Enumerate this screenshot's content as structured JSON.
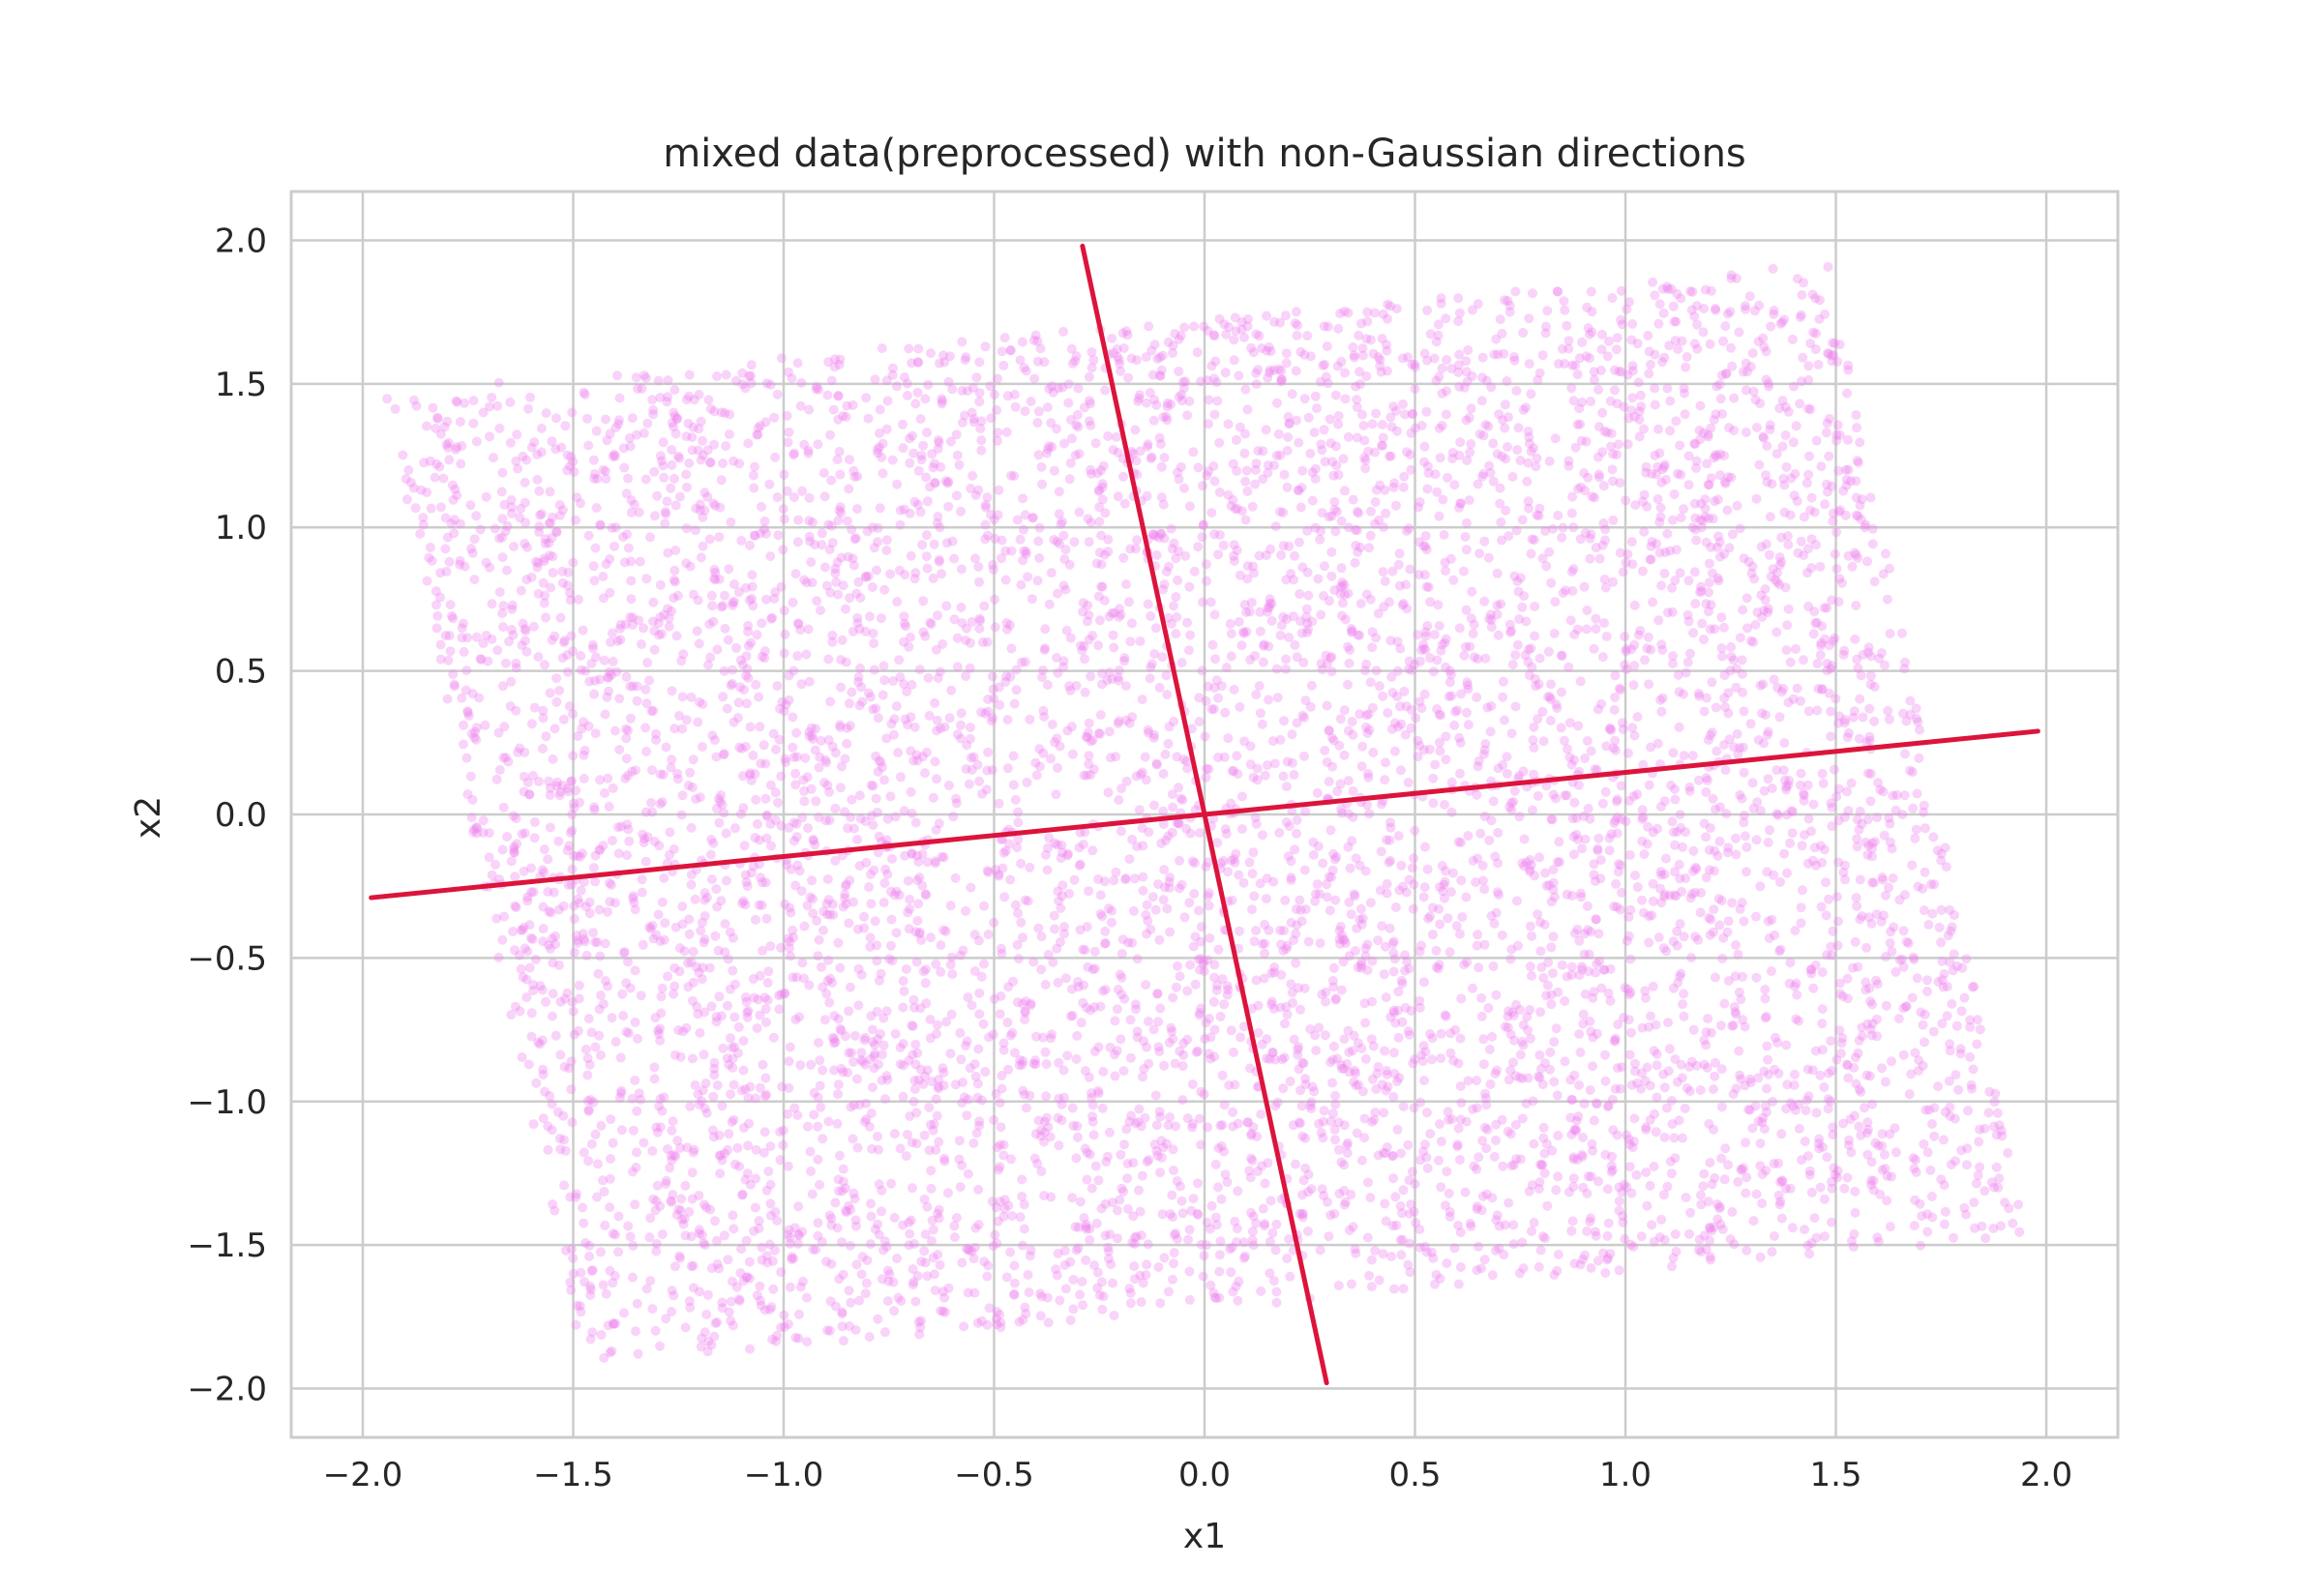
{
  "chart_data": {
    "type": "scatter",
    "title": "mixed data(preprocessed) with non-Gaussian directions",
    "xlabel": "x1",
    "ylabel": "x2",
    "xlim": [
      -2.17,
      2.17
    ],
    "ylim": [
      -2.17,
      2.17
    ],
    "grid": true,
    "x_ticks": [
      -2.0,
      -1.5,
      -1.0,
      -0.5,
      0.0,
      0.5,
      1.0,
      1.5,
      2.0
    ],
    "y_ticks": [
      -2.0,
      -1.5,
      -1.0,
      -0.5,
      0.0,
      0.5,
      1.0,
      1.5,
      2.0
    ],
    "x_tick_labels": [
      "−2.0",
      "−1.5",
      "−1.0",
      "−0.5",
      "0.0",
      "0.5",
      "1.0",
      "1.5",
      "2.0"
    ],
    "y_tick_labels": [
      "−2.0",
      "−1.5",
      "−1.0",
      "−0.5",
      "0.0",
      "0.5",
      "1.0",
      "1.5",
      "2.0"
    ],
    "scatter": {
      "color": "#ee82ee",
      "alpha": 0.35,
      "point_count": 7000,
      "region_corners": [
        [
          -1.95,
          1.47
        ],
        [
          1.48,
          1.92
        ],
        [
          1.95,
          -1.45
        ],
        [
          -1.48,
          -1.92
        ]
      ]
    },
    "directions": [
      {
        "points": [
          [
            -1.98,
            -0.29
          ],
          [
            1.98,
            0.29
          ]
        ],
        "color": "#dc143c"
      },
      {
        "points": [
          [
            -0.29,
            1.98
          ],
          [
            0.29,
            -1.98
          ]
        ],
        "color": "#dc143c"
      }
    ]
  }
}
